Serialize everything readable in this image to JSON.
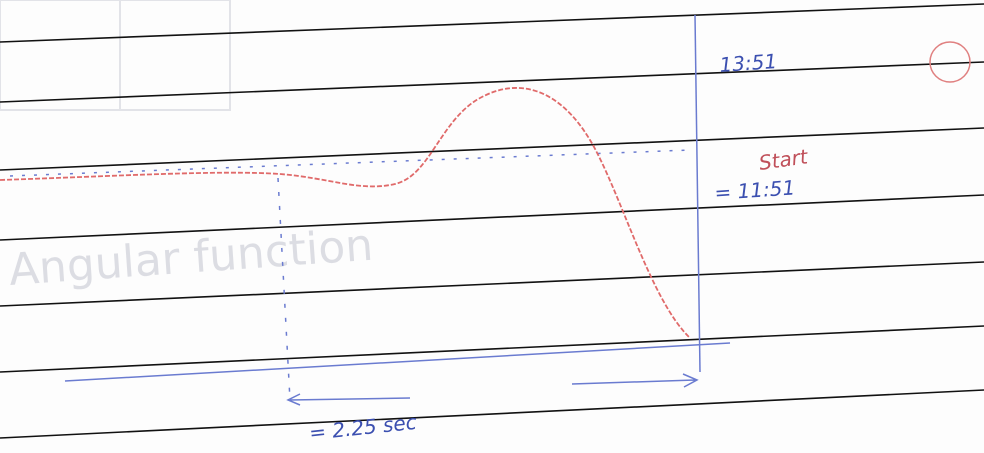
{
  "annotations": {
    "top_right": "13:51",
    "label_right": "Start",
    "value_right": "= 11:51",
    "bottom": "= 2.25 sec",
    "bleed_through": "Angular function"
  }
}
